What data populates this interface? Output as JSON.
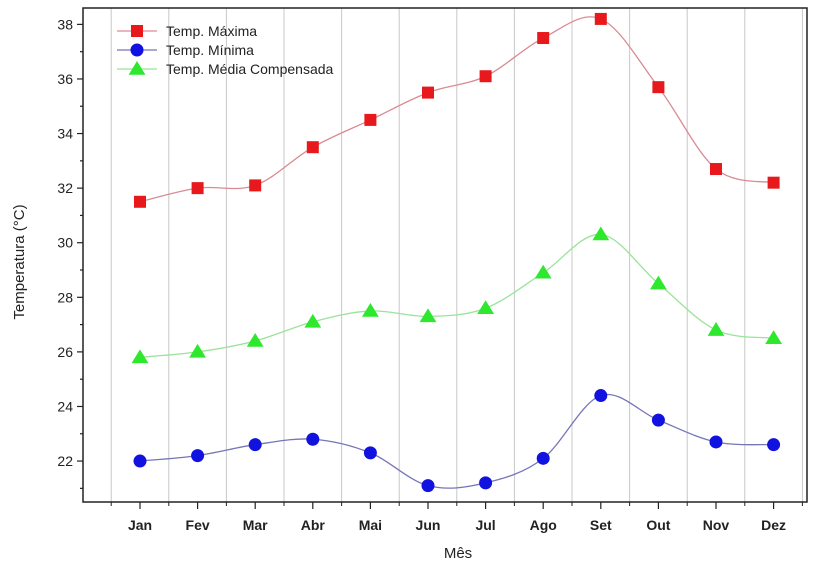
{
  "chart_data": {
    "type": "line",
    "xlabel": "Mês",
    "ylabel": "Temperatura (°C)",
    "categories": [
      "Jan",
      "Fev",
      "Mar",
      "Abr",
      "Mai",
      "Jun",
      "Jul",
      "Ago",
      "Set",
      "Out",
      "Nov",
      "Dez"
    ],
    "ylim": [
      20.5,
      38.6
    ],
    "yticks": [
      22,
      24,
      26,
      28,
      30,
      32,
      34,
      36,
      38
    ],
    "grid": "vertical",
    "legend_position": "top-left",
    "series": [
      {
        "name": "Temp. Máxima",
        "marker": "square",
        "marker_color": "#e8191c",
        "line_color": "#d98a93",
        "values": [
          31.5,
          32.0,
          32.1,
          33.5,
          34.5,
          35.5,
          36.1,
          37.5,
          38.2,
          35.7,
          32.7,
          32.2
        ]
      },
      {
        "name": "Temp. Mínima",
        "marker": "circle",
        "marker_color": "#1212e0",
        "line_color": "#7575b8",
        "values": [
          22.0,
          22.2,
          22.6,
          22.8,
          22.3,
          21.1,
          21.2,
          22.1,
          24.4,
          23.5,
          22.7,
          22.6
        ]
      },
      {
        "name": "Temp. Média Compensada",
        "marker": "triangle",
        "marker_color": "#2ee82e",
        "line_color": "#9ae39a",
        "values": [
          25.8,
          26.0,
          26.4,
          27.1,
          27.5,
          27.3,
          27.6,
          28.9,
          30.3,
          28.5,
          26.8,
          26.5
        ]
      }
    ]
  }
}
